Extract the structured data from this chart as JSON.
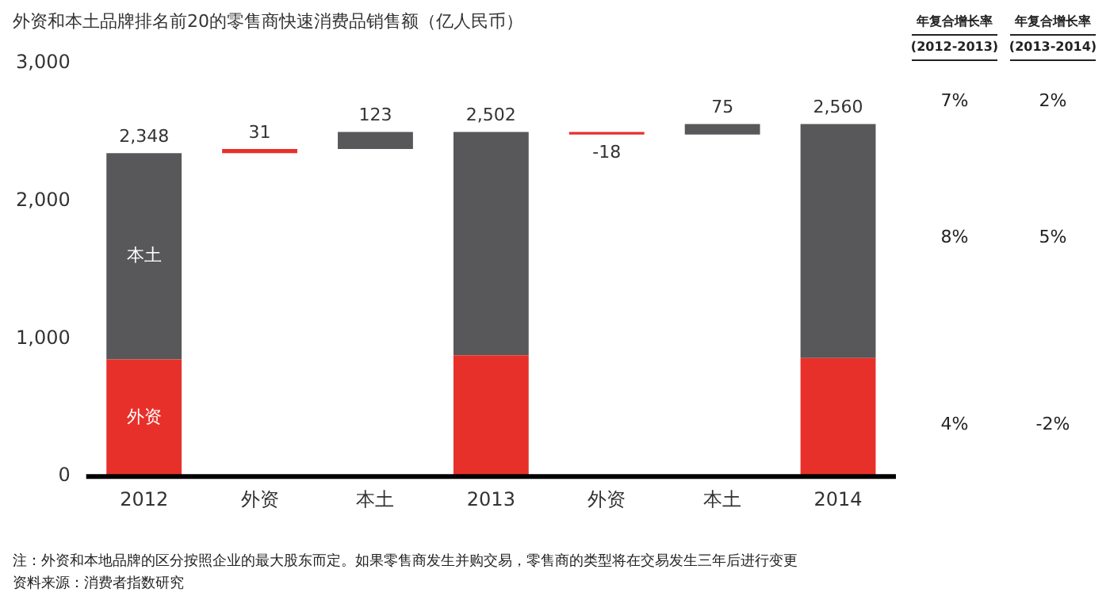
{
  "chart_data": {
    "type": "bar",
    "title": "外资和本土品牌排名前20的零售商快速消费品销售额（亿人民币）",
    "categories": [
      "2012",
      "外资",
      "本土",
      "2013",
      "外资",
      "本土",
      "2014"
    ],
    "series": [
      {
        "name": "外资",
        "color": "#e8302a",
        "values": [
          850,
          31,
          null,
          880,
          -18,
          null,
          860
        ],
        "base": [
          0,
          2348,
          null,
          0,
          2502,
          null,
          0
        ]
      },
      {
        "name": "本土",
        "color": "#58585a",
        "values": [
          1498,
          null,
          123,
          1622,
          null,
          75,
          1700
        ],
        "base": [
          850,
          null,
          2379,
          880,
          null,
          2484,
          860
        ]
      }
    ],
    "totals": [
      "2,348",
      "31",
      "123",
      "2,502",
      "-18",
      "75",
      "2,560"
    ],
    "ylim": [
      0,
      3000
    ],
    "yticks": [
      {
        "value": 0,
        "label": "0"
      },
      {
        "value": 1000,
        "label": "1,000"
      },
      {
        "value": 2000,
        "label": "2,000"
      },
      {
        "value": 3000,
        "label": "3,000"
      }
    ],
    "grid": false,
    "legend": false,
    "annotations": [
      "年复合增长率 (2012-2013)",
      "年复合增长率 (2013-2014)",
      "7%",
      "2%",
      "8%",
      "5%",
      "4%",
      "-2%",
      "注：外资和本地品牌的区分按照企业的最大股东而定。如果零售商发生并购交易，零售商的类型将在交易发生三年后进行变更",
      "资料来源：消费者指数研究"
    ]
  }
}
